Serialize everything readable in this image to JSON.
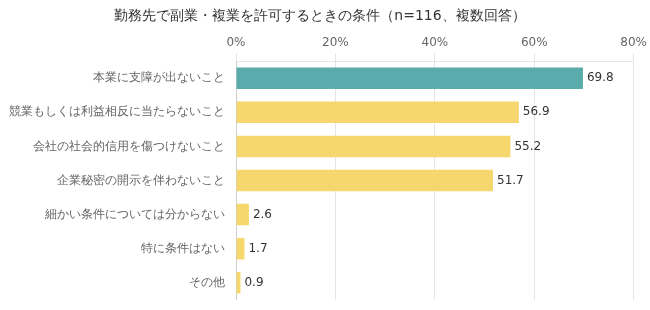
{
  "chart_data": {
    "type": "bar",
    "orientation": "horizontal",
    "title": "勤務先で副業・複業を許可するときの条件（n=116、複数回答）",
    "categories": [
      "本業に支障が出ないこと",
      "競業もしくは利益相反に当たらないこと",
      "会社の社会的信用を傷つけないこと",
      "企業秘密の開示を伴わないこと",
      "細かい条件については分からない",
      "特に条件はない",
      "その他"
    ],
    "values": [
      69.8,
      56.9,
      55.2,
      51.7,
      2.6,
      1.7,
      0.9
    ],
    "colors": [
      "#5aacac",
      "#f5d76e",
      "#f5d76e",
      "#f5d76e",
      "#f5d76e",
      "#f5d76e",
      "#f5d76e"
    ],
    "xlim": [
      0,
      80
    ],
    "xticks": [
      {
        "value": 0,
        "label": "0%"
      },
      {
        "value": 20,
        "label": "20%"
      },
      {
        "value": 40,
        "label": "40%"
      },
      {
        "value": 60,
        "label": "60%"
      },
      {
        "value": 80,
        "label": "80%"
      }
    ],
    "grid": true,
    "data_labels": true
  }
}
